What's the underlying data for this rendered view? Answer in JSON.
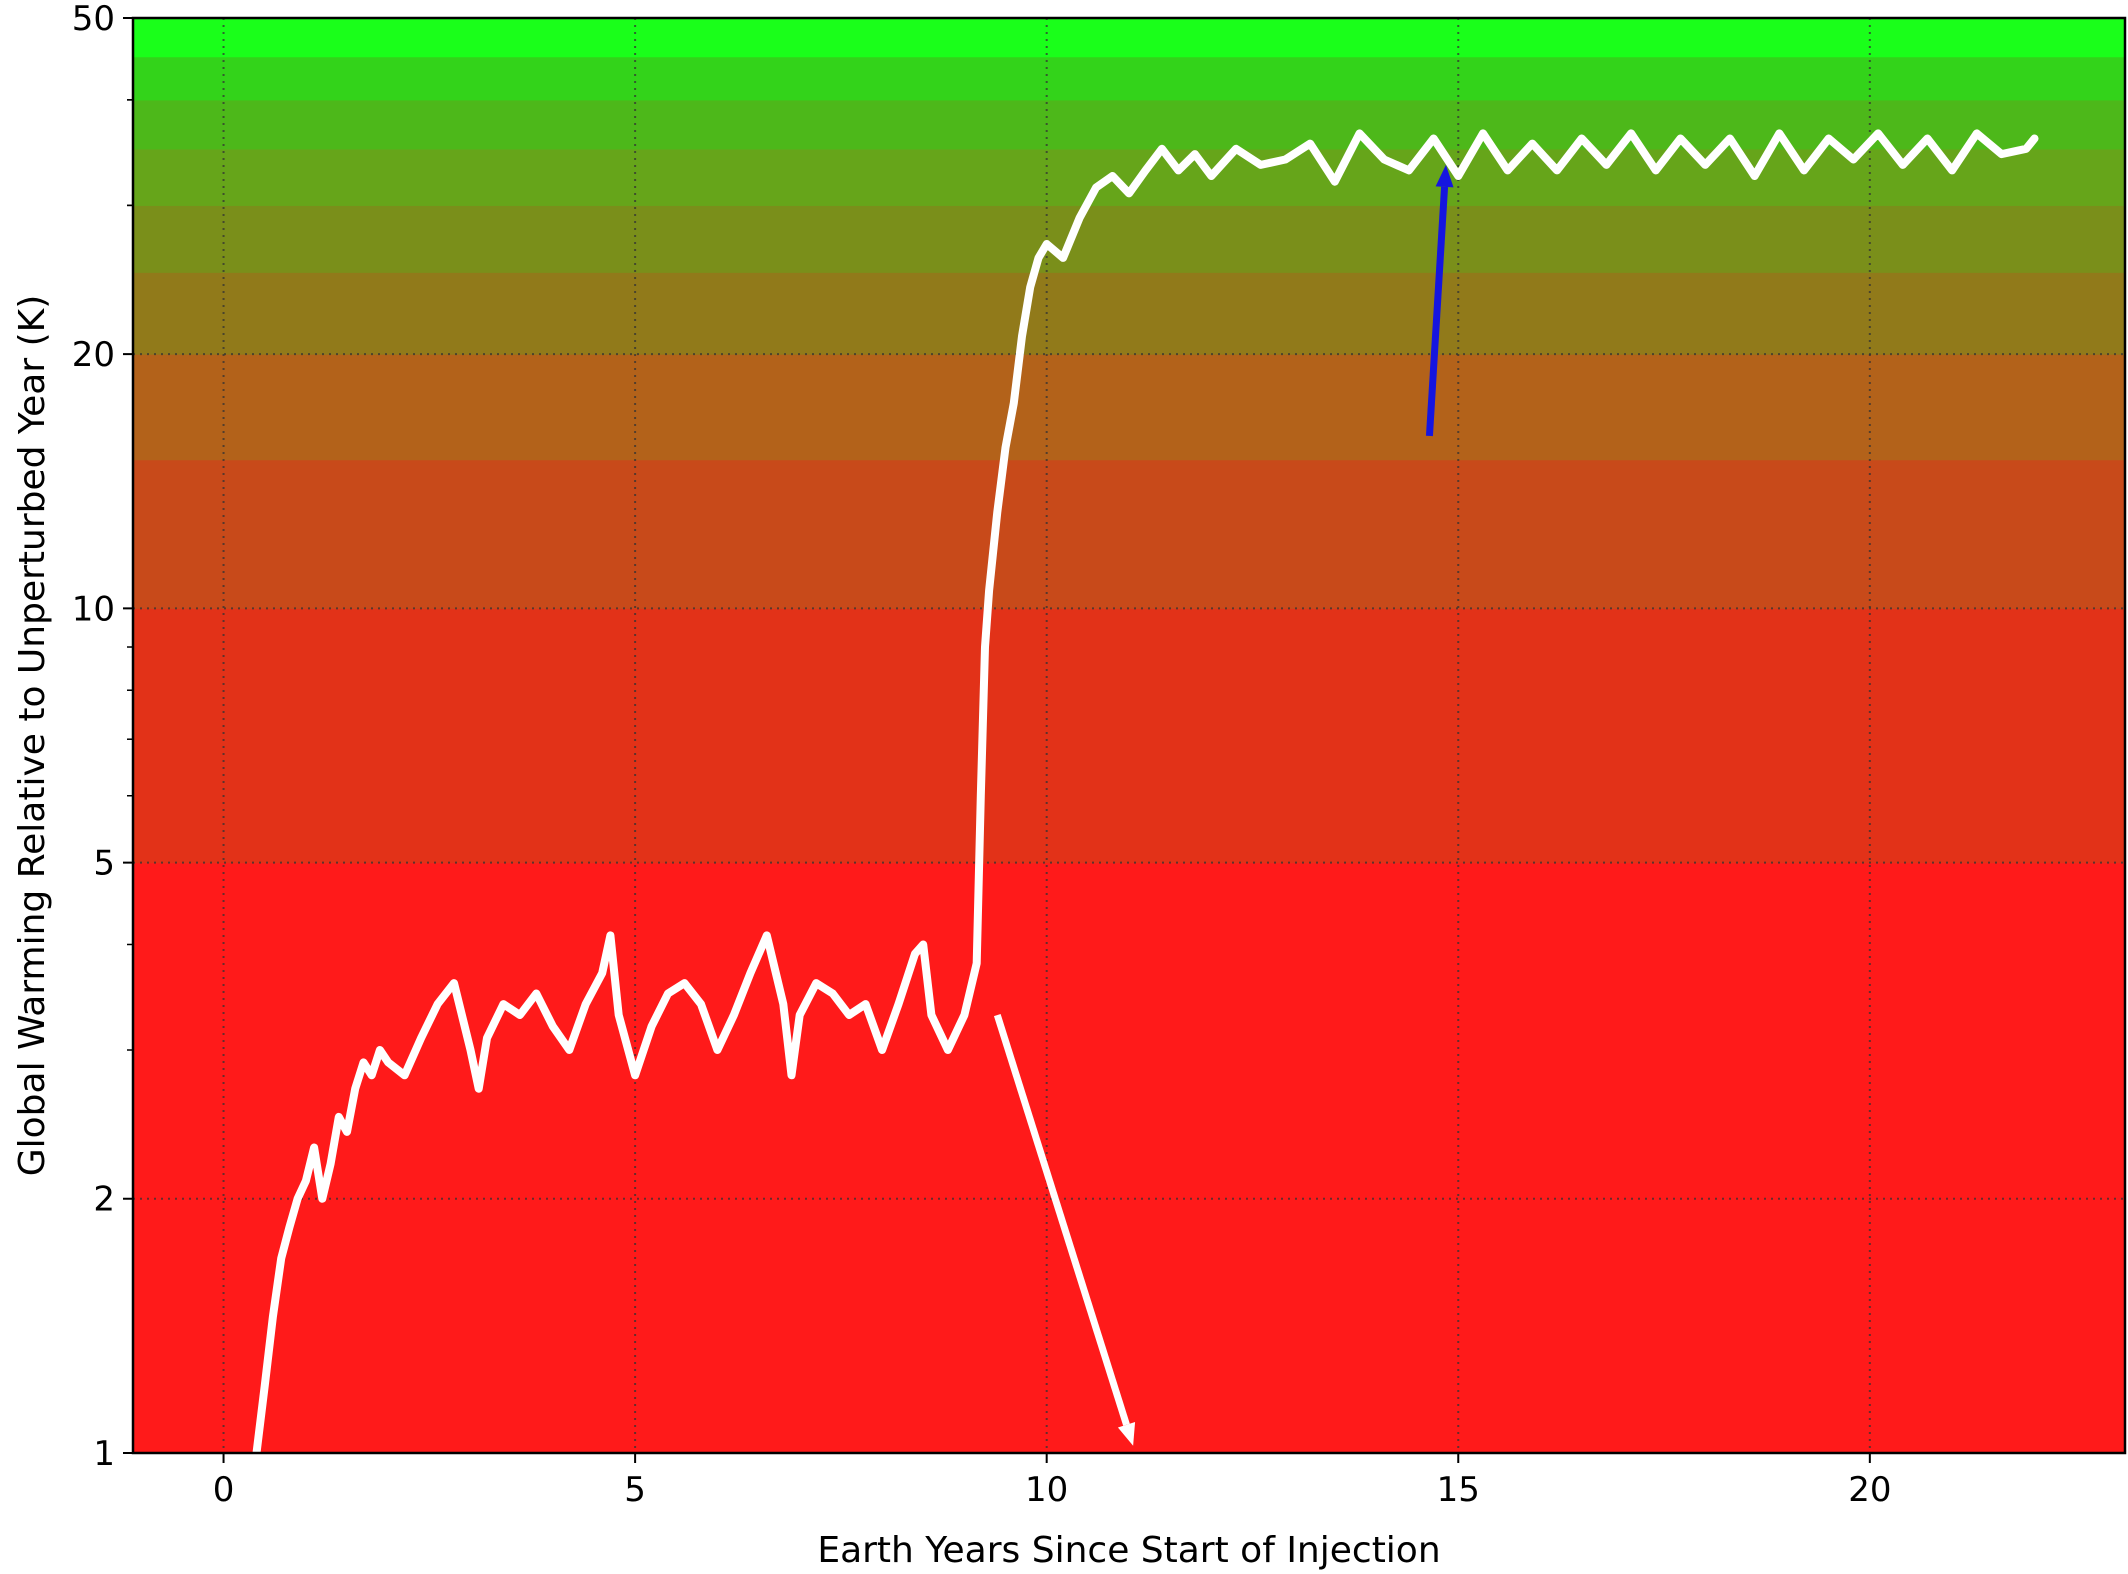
{
  "chart_data": {
    "type": "line",
    "title": "",
    "xlabel": "Earth Years Since Start of Injection",
    "ylabel": "Global Warming Relative to Unperturbed Year (K)",
    "xlim": [
      -1.1,
      23.1
    ],
    "ylim": [
      1,
      50
    ],
    "yscale": "log",
    "grid": true,
    "x_ticks": [
      0,
      5,
      10,
      15,
      20
    ],
    "x_tick_labels": [
      "0",
      "5",
      "10",
      "15",
      "20"
    ],
    "y_ticks": [
      1,
      2,
      5,
      10,
      20,
      50
    ],
    "y_tick_labels": [
      "1",
      "2",
      "5",
      "10",
      "20",
      "50"
    ],
    "background_bands": [
      {
        "from": 1,
        "to": 5,
        "color": "#ff1a1a"
      },
      {
        "from": 5,
        "to": 10,
        "color": "#e23218"
      },
      {
        "from": 10,
        "to": 15,
        "color": "#c84a1a"
      },
      {
        "from": 15,
        "to": 20,
        "color": "#b3621a"
      },
      {
        "from": 20,
        "to": 25,
        "color": "#917a1a"
      },
      {
        "from": 25,
        "to": 30,
        "color": "#7a8f1a"
      },
      {
        "from": 30,
        "to": 35,
        "color": "#66a51a"
      },
      {
        "from": 35,
        "to": 40,
        "color": "#4db81a"
      },
      {
        "from": 40,
        "to": 45,
        "color": "#33d31a"
      },
      {
        "from": 45,
        "to": 50,
        "color": "#1aff1a"
      }
    ],
    "series": [
      {
        "color": "#ffffff",
        "x": [
          0.4,
          0.5,
          0.6,
          0.7,
          0.8,
          0.9,
          1.0,
          1.1,
          1.2,
          1.3,
          1.4,
          1.5,
          1.6,
          1.7,
          1.8,
          1.9,
          2.0,
          2.2,
          2.4,
          2.6,
          2.8,
          3.0,
          3.1,
          3.2,
          3.4,
          3.6,
          3.8,
          4.0,
          4.2,
          4.4,
          4.6,
          4.7,
          4.8,
          5.0,
          5.2,
          5.4,
          5.6,
          5.8,
          6.0,
          6.2,
          6.4,
          6.6,
          6.8,
          6.9,
          7.0,
          7.2,
          7.4,
          7.6,
          7.8,
          8.0,
          8.2,
          8.4,
          8.5,
          8.6,
          8.8,
          9.0,
          9.15,
          9.2,
          9.25,
          9.3,
          9.4,
          9.5,
          9.6,
          9.7,
          9.8,
          9.9,
          10.0,
          10.2,
          10.4,
          10.6,
          10.8,
          11.0,
          11.2,
          11.4,
          11.6,
          11.8,
          12.0,
          12.3,
          12.6,
          12.9,
          13.2,
          13.5,
          13.8,
          14.1,
          14.4,
          14.7,
          15.0,
          15.3,
          15.6,
          15.9,
          16.2,
          16.5,
          16.8,
          17.1,
          17.4,
          17.7,
          18.0,
          18.3,
          18.6,
          18.9,
          19.2,
          19.5,
          19.8,
          20.1,
          20.4,
          20.7,
          21.0,
          21.3,
          21.6,
          21.9,
          22.0
        ],
        "y": [
          1.0,
          1.2,
          1.45,
          1.7,
          1.85,
          2.0,
          2.1,
          2.3,
          2.0,
          2.2,
          2.5,
          2.4,
          2.7,
          2.9,
          2.8,
          3.0,
          2.9,
          2.8,
          3.1,
          3.4,
          3.6,
          3.0,
          2.7,
          3.1,
          3.4,
          3.3,
          3.5,
          3.2,
          3.0,
          3.4,
          3.7,
          4.1,
          3.3,
          2.8,
          3.2,
          3.5,
          3.6,
          3.4,
          3.0,
          3.3,
          3.7,
          4.1,
          3.4,
          2.8,
          3.3,
          3.6,
          3.5,
          3.3,
          3.4,
          3.0,
          3.4,
          3.9,
          4.0,
          3.3,
          3.0,
          3.3,
          3.8,
          6.0,
          9.0,
          10.5,
          13.0,
          15.5,
          17.5,
          21.0,
          24.0,
          26.0,
          27.0,
          26.0,
          29.0,
          31.5,
          32.5,
          31.0,
          33.0,
          35.0,
          33.0,
          34.5,
          32.5,
          35.0,
          33.5,
          34.0,
          35.5,
          32.0,
          36.5,
          34.0,
          33.0,
          36.0,
          32.5,
          36.5,
          33.0,
          35.5,
          33.0,
          36.0,
          33.5,
          36.5,
          33.0,
          36.0,
          33.5,
          36.0,
          32.5,
          36.5,
          33.0,
          36.0,
          34.0,
          36.5,
          33.5,
          36.0,
          33.0,
          36.5,
          34.5,
          35.0,
          36.0
        ]
      }
    ],
    "annotations": [
      {
        "type": "arrow",
        "color": "#ffffff",
        "from": [
          9.4,
          3.3
        ],
        "to": [
          11.05,
          1.02
        ]
      },
      {
        "type": "arrow",
        "color": "#1515e0",
        "from": [
          14.65,
          16.0
        ],
        "to": [
          14.85,
          33.5
        ]
      }
    ]
  }
}
